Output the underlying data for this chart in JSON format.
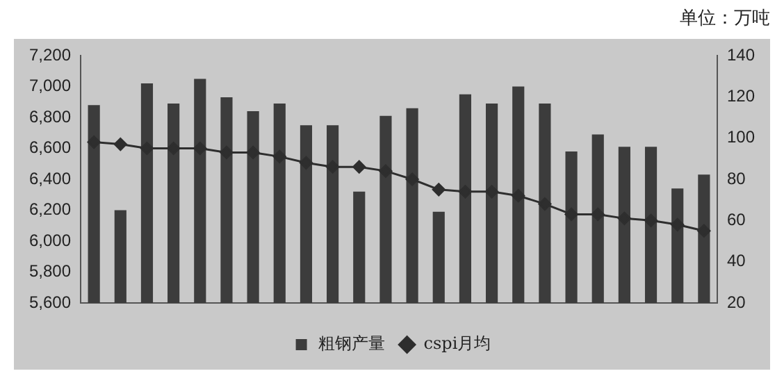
{
  "chart_data": {
    "type": "bar",
    "annotations": [
      "单位：万吨"
    ],
    "categories": [
      null,
      null,
      null,
      null,
      null,
      null,
      null,
      null,
      null,
      null,
      null,
      null,
      null,
      null,
      null,
      null,
      null,
      null,
      null,
      null,
      null,
      null,
      null,
      null
    ],
    "series": [
      {
        "name": "粗钢产量",
        "color": "#3c3c3c",
        "values": [
          6880,
          6200,
          7020,
          6890,
          7050,
          6930,
          6840,
          6890,
          6750,
          6750,
          6320,
          6810,
          6860,
          6190,
          6950,
          6890,
          7000,
          6890,
          6580,
          6690,
          6610,
          6610,
          6340,
          6430
        ]
      },
      {
        "name": "cspi月均",
        "type": "line",
        "axis": "y2",
        "color": "#2e2e2e",
        "marker": "diamond",
        "values": [
          98,
          97,
          95,
          95,
          95,
          93,
          93,
          91,
          88,
          86,
          86,
          84,
          80,
          75,
          74,
          74,
          72,
          68,
          63,
          63,
          61,
          60,
          58,
          55
        ]
      }
    ],
    "ylim": [
      5600,
      7200
    ],
    "yticks": [
      {
        "value": 5600,
        "label": "5,600"
      },
      {
        "value": 5800,
        "label": "5,800"
      },
      {
        "value": 6000,
        "label": "6,000"
      },
      {
        "value": 6200,
        "label": "6,200"
      },
      {
        "value": 6400,
        "label": "6,400"
      },
      {
        "value": 6600,
        "label": "6,600"
      },
      {
        "value": 6800,
        "label": "6,800"
      },
      {
        "value": 7000,
        "label": "7,000"
      },
      {
        "value": 7200,
        "label": "7,200"
      }
    ],
    "y2lim": [
      20,
      140
    ],
    "y2ticks": [
      20,
      40,
      60,
      80,
      100,
      120,
      140
    ],
    "grid": false,
    "legend": "bottom"
  }
}
